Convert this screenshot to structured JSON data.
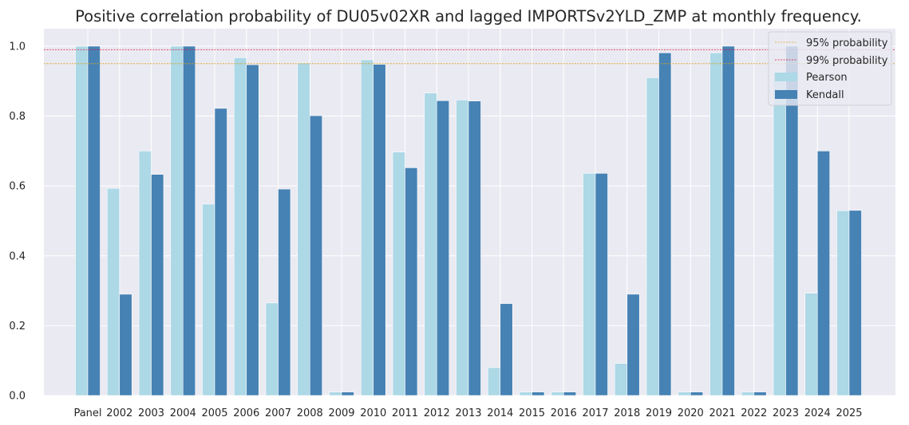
{
  "chart_data": {
    "type": "bar",
    "title": "Positive correlation probability of DU05v02XR and lagged IMPORTSv2YLD_ZMP at monthly frequency.",
    "xlabel": "",
    "ylabel": "",
    "ylim": [
      0,
      1.05
    ],
    "yticks": [
      "0.0",
      "0.2",
      "0.4",
      "0.6",
      "0.8",
      "1.0"
    ],
    "grid": true,
    "legend_position": "top-right",
    "categories": [
      "Panel",
      "2002",
      "2003",
      "2004",
      "2005",
      "2006",
      "2007",
      "2008",
      "2009",
      "2010",
      "2011",
      "2012",
      "2013",
      "2014",
      "2015",
      "2016",
      "2017",
      "2018",
      "2019",
      "2020",
      "2021",
      "2022",
      "2023",
      "2024",
      "2025"
    ],
    "series": [
      {
        "name": "Pearson",
        "color": "#add8e6",
        "values": [
          1.0,
          0.593,
          0.7,
          1.0,
          0.548,
          0.967,
          0.265,
          0.952,
          0.01,
          0.961,
          0.697,
          0.866,
          0.846,
          0.08,
          0.01,
          0.01,
          0.636,
          0.092,
          0.91,
          0.01,
          0.981,
          0.01,
          0.925,
          0.293,
          0.529
        ]
      },
      {
        "name": "Kendall",
        "color": "#4682b4",
        "values": [
          1.0,
          0.29,
          0.633,
          1.0,
          0.822,
          0.947,
          0.591,
          0.801,
          0.01,
          0.948,
          0.652,
          0.844,
          0.843,
          0.263,
          0.01,
          0.01,
          0.636,
          0.29,
          0.981,
          0.01,
          1.0,
          0.01,
          1.0,
          0.7,
          0.53
        ]
      }
    ],
    "reference_lines": [
      {
        "name": "95% probability",
        "value": 0.95,
        "color": "#daa520"
      },
      {
        "name": "99% probability",
        "value": 0.99,
        "color": "#dc143c"
      }
    ],
    "background_color": "#eaeaf2",
    "grid_color": "#ffffff"
  }
}
